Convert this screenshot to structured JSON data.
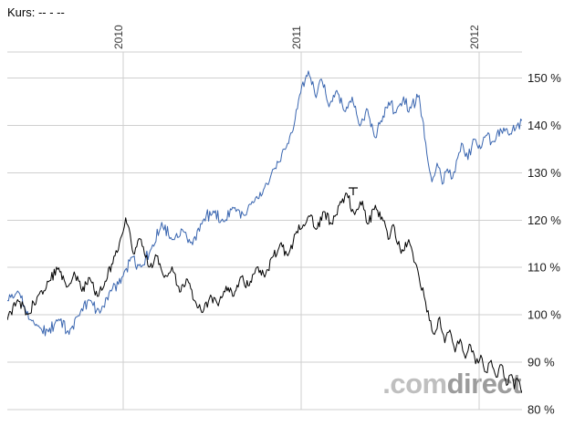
{
  "header": {
    "kurs_label": "Kurs: -- - --"
  },
  "watermark": {
    "prefix": ".com",
    "suffix": "direct"
  },
  "chart_data": {
    "type": "line",
    "title": "",
    "xlabel": "",
    "ylabel": "",
    "legend": "none",
    "grid": true,
    "x_axis": {
      "start_year_approx": 2009.35,
      "end_year_approx": 2012.24,
      "gridlines": [
        {
          "label": "2010",
          "year": 2010
        },
        {
          "label": "2011",
          "year": 2011
        },
        {
          "label": "2012",
          "year": 2012
        }
      ]
    },
    "y_axis": {
      "unit": "%",
      "min": 80,
      "max": 155.5,
      "tick_step": 10,
      "ticks": [
        150,
        140,
        130,
        120,
        110,
        100,
        90,
        80
      ],
      "tick_labels": [
        "150 %",
        "140 %",
        "130 %",
        "120 %",
        "110 %",
        "100 %",
        "90 %",
        "80 %"
      ]
    },
    "series": [
      {
        "name": "benchmark-line-blue",
        "color": "#3a66b0",
        "points": [
          [
            0.0,
            103
          ],
          [
            0.02,
            105
          ],
          [
            0.035,
            101
          ],
          [
            0.05,
            99
          ],
          [
            0.065,
            97
          ],
          [
            0.08,
            96.5
          ],
          [
            0.1,
            99
          ],
          [
            0.12,
            96
          ],
          [
            0.14,
            100
          ],
          [
            0.16,
            103
          ],
          [
            0.18,
            100.5
          ],
          [
            0.2,
            105
          ],
          [
            0.225,
            108
          ],
          [
            0.24,
            112
          ],
          [
            0.26,
            110
          ],
          [
            0.28,
            114
          ],
          [
            0.3,
            119.5
          ],
          [
            0.32,
            116
          ],
          [
            0.34,
            118
          ],
          [
            0.36,
            115
          ],
          [
            0.38,
            120
          ],
          [
            0.4,
            122
          ],
          [
            0.42,
            119.5
          ],
          [
            0.44,
            122.5
          ],
          [
            0.46,
            121
          ],
          [
            0.48,
            124
          ],
          [
            0.5,
            127
          ],
          [
            0.52,
            131
          ],
          [
            0.54,
            135
          ],
          [
            0.555,
            139
          ],
          [
            0.57,
            147
          ],
          [
            0.585,
            151.5
          ],
          [
            0.6,
            146
          ],
          [
            0.61,
            150
          ],
          [
            0.625,
            144
          ],
          [
            0.64,
            147.5
          ],
          [
            0.655,
            143
          ],
          [
            0.67,
            146
          ],
          [
            0.685,
            140
          ],
          [
            0.7,
            143.5
          ],
          [
            0.715,
            137.5
          ],
          [
            0.73,
            142
          ],
          [
            0.745,
            145
          ],
          [
            0.755,
            142.5
          ],
          [
            0.77,
            146
          ],
          [
            0.78,
            143
          ],
          [
            0.8,
            146.5
          ],
          [
            0.815,
            134
          ],
          [
            0.825,
            128
          ],
          [
            0.835,
            132
          ],
          [
            0.845,
            127.5
          ],
          [
            0.855,
            131
          ],
          [
            0.865,
            129
          ],
          [
            0.875,
            133
          ],
          [
            0.885,
            136
          ],
          [
            0.895,
            133
          ],
          [
            0.905,
            137
          ],
          [
            0.915,
            135
          ],
          [
            0.93,
            138
          ],
          [
            0.945,
            136.5
          ],
          [
            0.96,
            139
          ],
          [
            0.975,
            138
          ],
          [
            0.99,
            140
          ],
          [
            1.0,
            141
          ]
        ]
      },
      {
        "name": "instrument-line-black",
        "color": "#000000",
        "points": [
          [
            0.0,
            99
          ],
          [
            0.02,
            103
          ],
          [
            0.04,
            100
          ],
          [
            0.06,
            104
          ],
          [
            0.08,
            107
          ],
          [
            0.1,
            110
          ],
          [
            0.115,
            106
          ],
          [
            0.13,
            109
          ],
          [
            0.145,
            105
          ],
          [
            0.16,
            108
          ],
          [
            0.175,
            104
          ],
          [
            0.19,
            107
          ],
          [
            0.205,
            111
          ],
          [
            0.22,
            116
          ],
          [
            0.23,
            120.5
          ],
          [
            0.245,
            113
          ],
          [
            0.26,
            116
          ],
          [
            0.275,
            110
          ],
          [
            0.29,
            112.5
          ],
          [
            0.305,
            108
          ],
          [
            0.32,
            110
          ],
          [
            0.335,
            105
          ],
          [
            0.35,
            107.5
          ],
          [
            0.365,
            103
          ],
          [
            0.38,
            100.5
          ],
          [
            0.395,
            104
          ],
          [
            0.41,
            102
          ],
          [
            0.425,
            106
          ],
          [
            0.44,
            104
          ],
          [
            0.455,
            108
          ],
          [
            0.47,
            106
          ],
          [
            0.485,
            110
          ],
          [
            0.5,
            108
          ],
          [
            0.515,
            112
          ],
          [
            0.53,
            115
          ],
          [
            0.545,
            112.5
          ],
          [
            0.56,
            117
          ],
          [
            0.575,
            119
          ],
          [
            0.59,
            121
          ],
          [
            0.6,
            118
          ],
          [
            0.615,
            122
          ],
          [
            0.63,
            119
          ],
          [
            0.645,
            123
          ],
          [
            0.66,
            125.5
          ],
          [
            0.675,
            121
          ],
          [
            0.69,
            124
          ],
          [
            0.7,
            119
          ],
          [
            0.715,
            123
          ],
          [
            0.73,
            120
          ],
          [
            0.74,
            116
          ],
          [
            0.75,
            119
          ],
          [
            0.765,
            113
          ],
          [
            0.78,
            116
          ],
          [
            0.79,
            111
          ],
          [
            0.8,
            108
          ],
          [
            0.81,
            104
          ],
          [
            0.82,
            99
          ],
          [
            0.83,
            96
          ],
          [
            0.84,
            99.5
          ],
          [
            0.85,
            94
          ],
          [
            0.86,
            97
          ],
          [
            0.87,
            92
          ],
          [
            0.88,
            95
          ],
          [
            0.89,
            91
          ],
          [
            0.9,
            93.5
          ],
          [
            0.91,
            89.5
          ],
          [
            0.92,
            91.5
          ],
          [
            0.93,
            88
          ],
          [
            0.94,
            90.5
          ],
          [
            0.95,
            87
          ],
          [
            0.96,
            89.5
          ],
          [
            0.97,
            85
          ],
          [
            0.98,
            87.5
          ],
          [
            0.985,
            84.5
          ],
          [
            0.99,
            86.5
          ],
          [
            1.0,
            83.5
          ]
        ]
      }
    ],
    "annotations": [
      {
        "type": "t-marker",
        "x_frac": 0.672,
        "value_pct": 126.8
      }
    ]
  }
}
